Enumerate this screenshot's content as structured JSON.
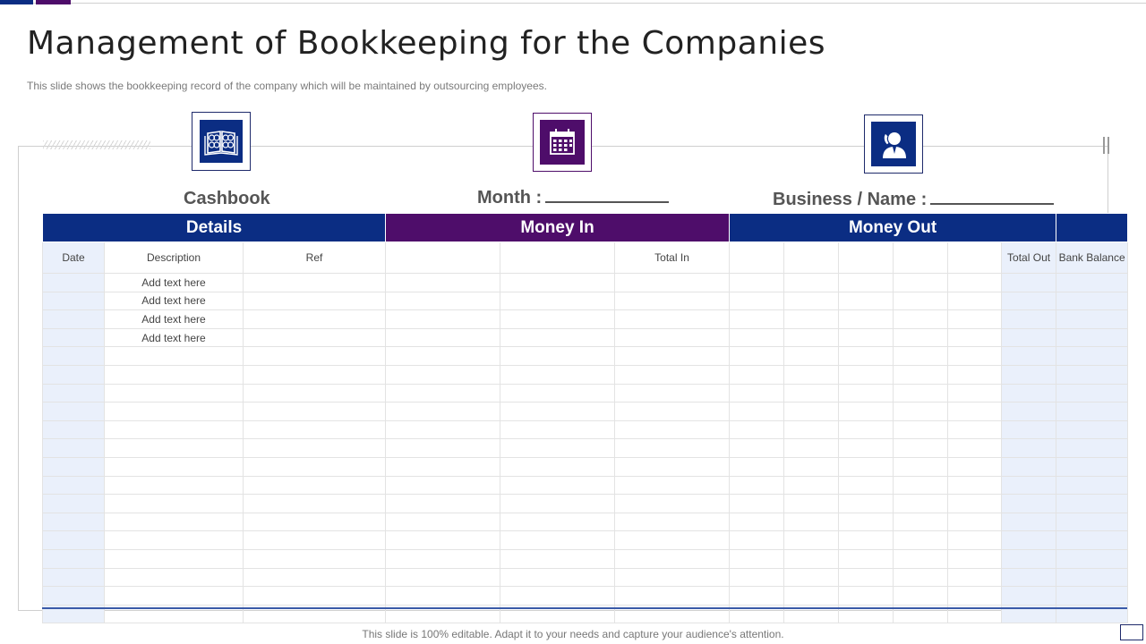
{
  "title": "Management of Bookkeeping for the Companies",
  "subtitle": "This slide shows the bookkeeping record of the company which will be maintained by outsourcing employees.",
  "colors": {
    "blue": "#0b2d83",
    "purple": "#4e0d6a",
    "shade": "#eaf0fb"
  },
  "icons": [
    "cashbook-icon",
    "calendar-icon",
    "businessman-phone-icon"
  ],
  "labels": {
    "cashbook": "Cashbook",
    "month": "Month :",
    "business_name": "Business / Name :"
  },
  "table": {
    "groups": [
      "Details",
      "Money In",
      "Money Out"
    ],
    "columns": {
      "date": "Date",
      "description": "Description",
      "ref": "Ref",
      "total_in": "Total In",
      "total_out": "Total Out",
      "bank_balance": "Bank Balance"
    },
    "rows": [
      "Add text here",
      "Add text here",
      "Add text here",
      "Add text here",
      "",
      "",
      "",
      "",
      "",
      "",
      "",
      "",
      "",
      "",
      "",
      "",
      "",
      "",
      ""
    ]
  },
  "footer": "This slide is 100% editable. Adapt it to your needs and capture your audience's attention."
}
